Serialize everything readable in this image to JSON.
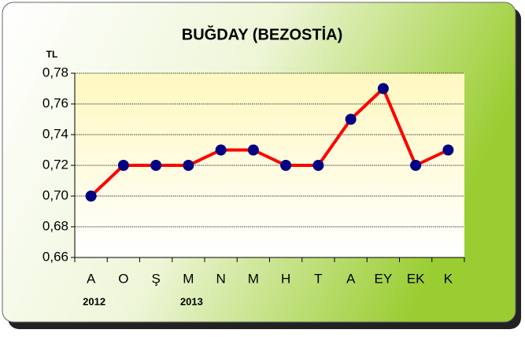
{
  "chart_data": {
    "type": "line",
    "title": "BUĞDAY (BEZOSTİA)",
    "y_axis_label": "TL",
    "categories": [
      "A",
      "O",
      "Ş",
      "M",
      "N",
      "M",
      "H",
      "T",
      "A",
      "EY",
      "EK",
      "K"
    ],
    "series": [
      {
        "name": "BUĞDAY (BEZOSTİA)",
        "color": "#ff0000",
        "marker_color": "#000080",
        "values": [
          0.7,
          0.72,
          0.72,
          0.72,
          0.73,
          0.73,
          0.72,
          0.72,
          0.75,
          0.77,
          0.72,
          0.73
        ]
      }
    ],
    "ylim": [
      0.66,
      0.78
    ],
    "yticks": [
      {
        "value": 0.66,
        "label": "0,66"
      },
      {
        "value": 0.68,
        "label": "0,68"
      },
      {
        "value": 0.7,
        "label": "0,70"
      },
      {
        "value": 0.72,
        "label": "0,72"
      },
      {
        "value": 0.74,
        "label": "0,74"
      },
      {
        "value": 0.76,
        "label": "0,76"
      },
      {
        "value": 0.78,
        "label": "0,78"
      }
    ],
    "annotations": [
      "2012",
      "2013"
    ],
    "grid": true
  }
}
